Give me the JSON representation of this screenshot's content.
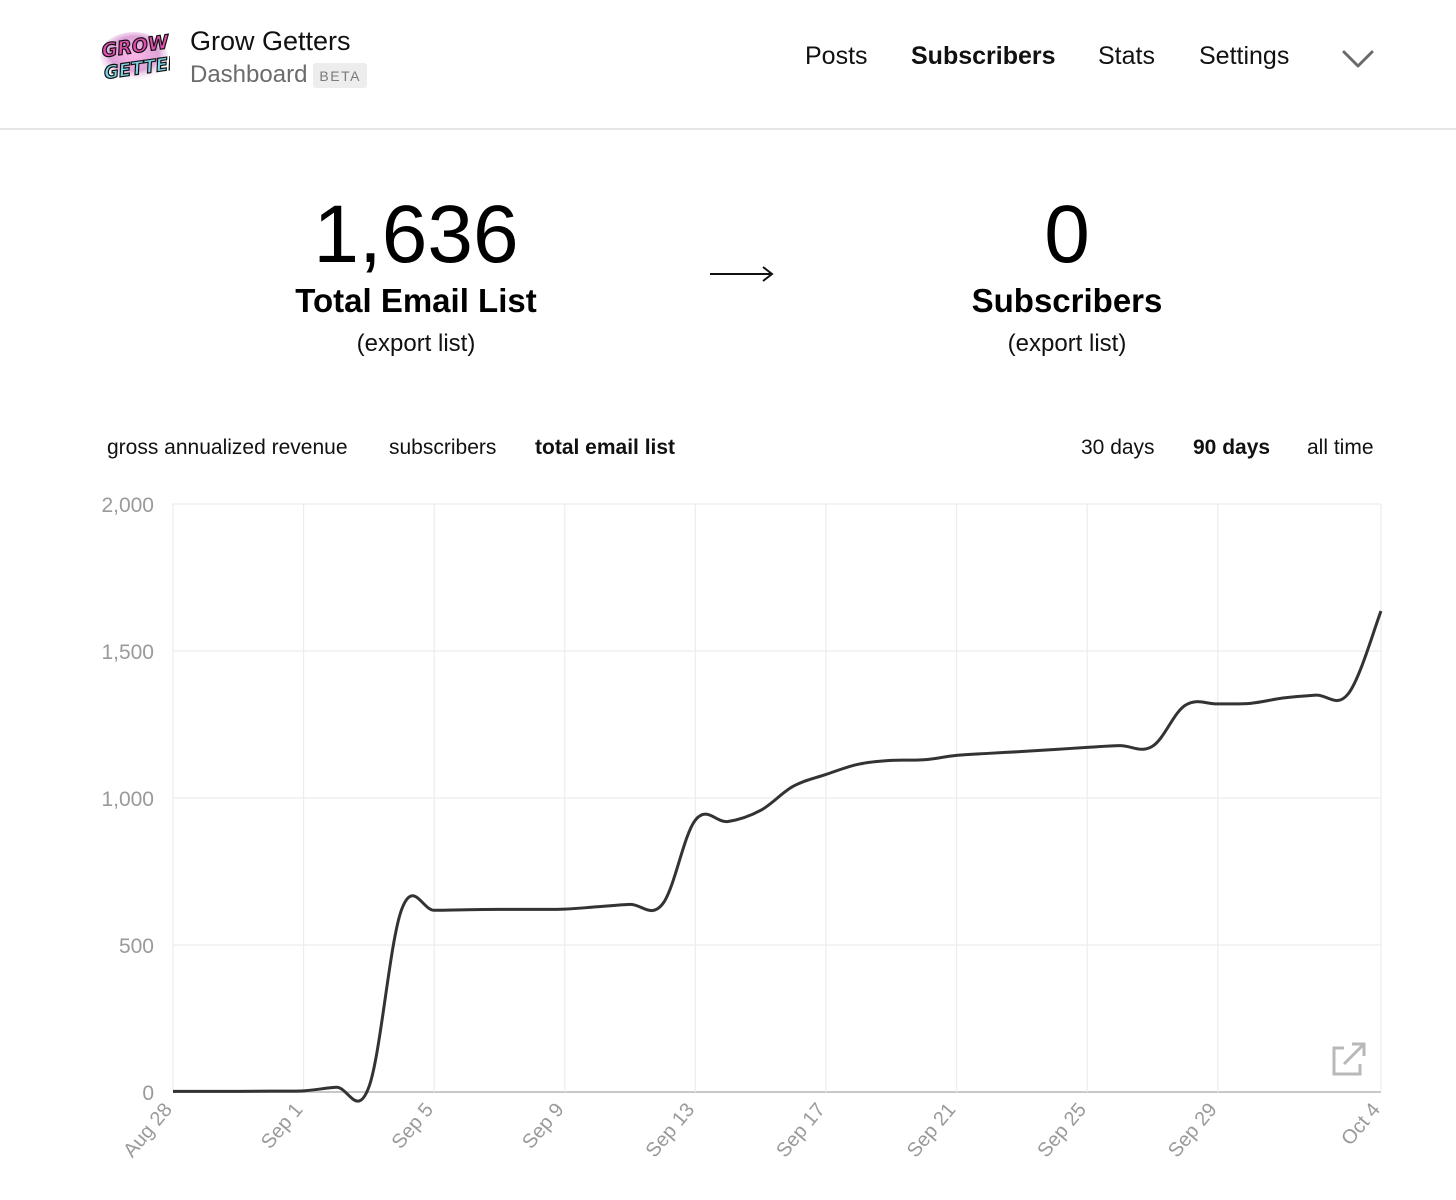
{
  "brand": {
    "logo_text": "GROW GETTERS",
    "title": "Grow Getters",
    "subtitle": "Dashboard",
    "badge": "BETA"
  },
  "nav": {
    "posts": "Posts",
    "subscribers": "Subscribers",
    "stats": "Stats",
    "settings": "Settings",
    "menu_icon": "chevron-down-icon"
  },
  "stats": {
    "total": {
      "value": "1,636",
      "label": "Total Email List",
      "link": "(export list)"
    },
    "subscribers": {
      "value": "0",
      "label": "Subscribers",
      "link": "(export list)"
    }
  },
  "tabs": {
    "metric": [
      "gross annualized revenue",
      "subscribers",
      "total email list"
    ],
    "metric_active": "total email list",
    "range": [
      "30 days",
      "90 days",
      "all time"
    ],
    "range_active": "90 days"
  },
  "colors": {
    "line": "#333333",
    "grid": "#ececec",
    "axis_text": "#9a9a9a"
  },
  "chart_data": {
    "type": "line",
    "title": "",
    "xlabel": "",
    "ylabel": "",
    "ylim": [
      0,
      2000
    ],
    "yticks": [
      "0",
      "500",
      "1,000",
      "1,500",
      "2,000"
    ],
    "ytick_values": [
      0,
      500,
      1000,
      1500,
      2000
    ],
    "xticks": [
      "Aug 28",
      "Sep 1",
      "Sep 5",
      "Sep 9",
      "Sep 13",
      "Sep 17",
      "Sep 21",
      "Sep 25",
      "Sep 29",
      "Oct 4"
    ],
    "grid": true,
    "x": [
      "Aug 28",
      "Aug 29",
      "Aug 30",
      "Aug 31",
      "Sep 1",
      "Sep 2",
      "Sep 3",
      "Sep 4",
      "Sep 5",
      "Sep 6",
      "Sep 7",
      "Sep 8",
      "Sep 9",
      "Sep 10",
      "Sep 11",
      "Sep 12",
      "Sep 13",
      "Sep 14",
      "Sep 15",
      "Sep 16",
      "Sep 17",
      "Sep 18",
      "Sep 19",
      "Sep 20",
      "Sep 21",
      "Sep 22",
      "Sep 23",
      "Sep 24",
      "Sep 25",
      "Sep 26",
      "Sep 27",
      "Sep 28",
      "Sep 29",
      "Sep 30",
      "Oct 1",
      "Oct 2",
      "Oct 3",
      "Oct 4"
    ],
    "series": [
      {
        "values": [
          2,
          2,
          2,
          3,
          4,
          16,
          17,
          620,
          618,
          620,
          621,
          621,
          622,
          630,
          638,
          640,
          925,
          920,
          958,
          1040,
          1080,
          1115,
          1128,
          1130,
          1145,
          1152,
          1158,
          1165,
          1172,
          1178,
          1176,
          1315,
          1320,
          1322,
          1340,
          1350,
          1355,
          1636
        ]
      }
    ]
  }
}
